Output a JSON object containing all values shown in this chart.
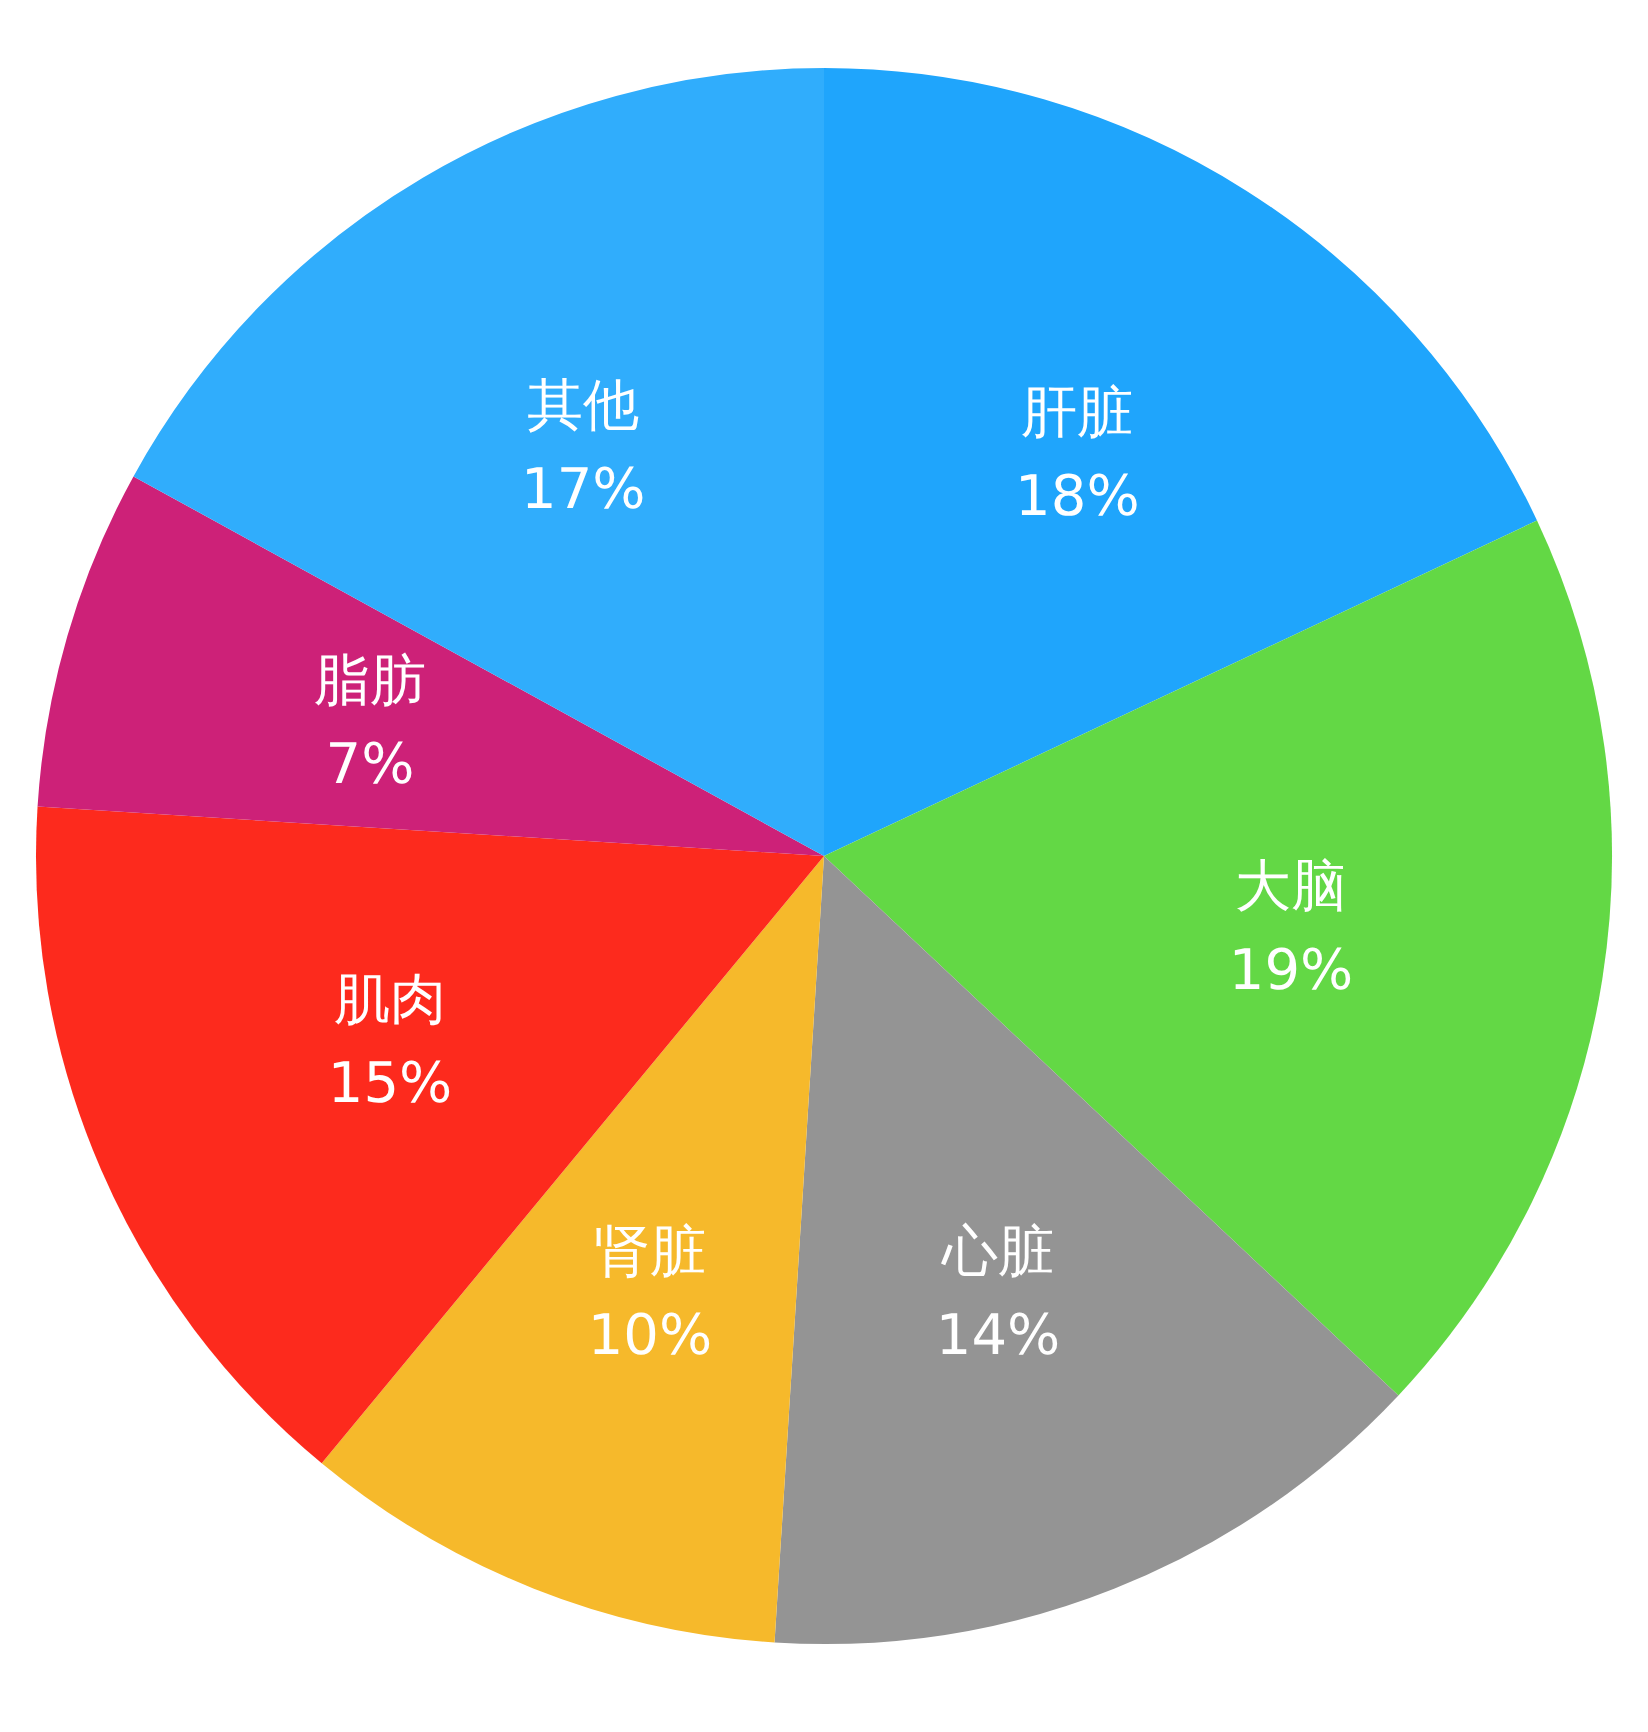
{
  "chart_data": {
    "type": "pie",
    "categories": [
      "肝脏",
      "大脑",
      "心脏",
      "肾脏",
      "肌肉",
      "脂肪",
      "其他"
    ],
    "values": [
      18,
      19,
      14,
      10,
      15,
      7,
      17
    ],
    "colors": [
      "#1fa5fc",
      "#63d845",
      "#949494",
      "#f6b92b",
      "#fd2a1d",
      "#cd2178",
      "#30adfc"
    ],
    "value_labels": [
      "18%",
      "19%",
      "14%",
      "10%",
      "15%",
      "7%",
      "17%"
    ],
    "legend": false
  }
}
